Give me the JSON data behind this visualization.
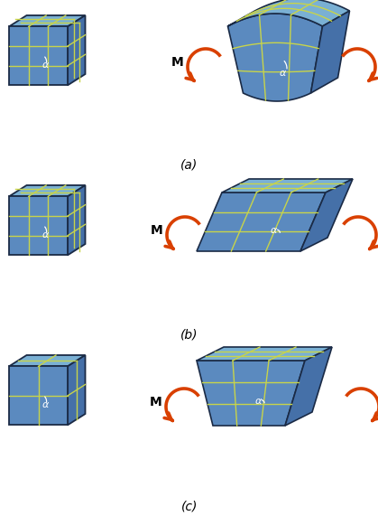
{
  "fig_width": 4.19,
  "fig_height": 5.71,
  "dpi": 100,
  "bg_color": "#ffffff",
  "fc_front": "#5b8abf",
  "fc_top": "#7ab0d4",
  "fc_side": "#4570a8",
  "ec": "#1a2a45",
  "gc": "#c8d44a",
  "ac": "#d94000",
  "alpha_label": "α",
  "M_label": "M",
  "row_tops": [
    12,
    200,
    388
  ],
  "labels": [
    "(a)",
    "(b)",
    "(c)"
  ]
}
